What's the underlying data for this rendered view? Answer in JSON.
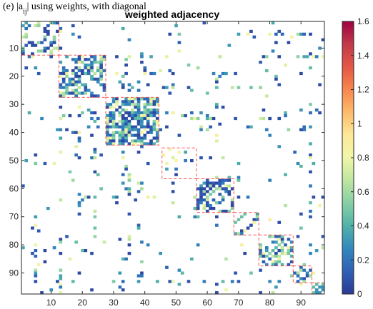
{
  "header": {
    "caption_fragment": "(e)                  |a",
    "caption_sub": "ij",
    "caption_rest": "| using weights, with diagonal",
    "title": "weighted adjacency"
  },
  "colors": {
    "colormap": [
      "#2b3a96",
      "#2f60b5",
      "#3288bd",
      "#52b2a8",
      "#86cfa5",
      "#bfe5a0",
      "#f0f6a8",
      "#fde89a",
      "#fdba6b",
      "#f7864e",
      "#e55645",
      "#c23a4a",
      "#9e0142"
    ],
    "block_outline": "#ff4d4d"
  },
  "chart_data": {
    "type": "heatmap",
    "title": "weighted adjacency",
    "n": 97,
    "xlim": [
      0.5,
      97.5
    ],
    "ylim": [
      0.5,
      97.5
    ],
    "y_reversed": true,
    "x_ticks": [
      10,
      20,
      30,
      40,
      50,
      60,
      70,
      80,
      90
    ],
    "y_ticks": [
      10,
      20,
      30,
      40,
      50,
      60,
      70,
      80,
      90
    ],
    "colorbar": {
      "min": 0,
      "max": 1.6,
      "ticks": [
        "0",
        "0.2",
        "0.4",
        "0.6",
        "0.8",
        "1",
        "1.2",
        "1.4",
        "1.6"
      ],
      "tick_values": [
        0,
        0.2,
        0.4,
        0.6,
        0.8,
        1.0,
        1.2,
        1.4,
        1.6
      ]
    },
    "blocks": [
      {
        "start": 1,
        "end": 12
      },
      {
        "start": 13,
        "end": 27
      },
      {
        "start": 28,
        "end": 44
      },
      {
        "start": 46,
        "end": 56
      },
      {
        "start": 57,
        "end": 68
      },
      {
        "start": 69,
        "end": 76
      },
      {
        "start": 77,
        "end": 87
      },
      {
        "start": 88,
        "end": 93
      },
      {
        "start": 94,
        "end": 97
      }
    ],
    "block_density": [
      0.35,
      0.45,
      0.75,
      0.12,
      0.55,
      0.3,
      0.5,
      0.55,
      0.6
    ],
    "hub_columns": [
      5,
      13,
      19,
      24,
      33,
      34,
      35,
      63,
      93
    ],
    "hub_rows": [
      33,
      34,
      38,
      39
    ],
    "background_density": 0.02,
    "value_range": [
      0.05,
      0.9
    ],
    "bright_cells": [
      {
        "row": 50,
        "col": 50,
        "value": 0.82
      },
      {
        "row": 49,
        "col": 49,
        "value": 0.75
      },
      {
        "row": 18,
        "col": 79,
        "value": 0.45
      },
      {
        "row": 61,
        "col": 59,
        "value": 0.6
      },
      {
        "row": 11,
        "col": 7,
        "value": 0.55
      }
    ]
  }
}
